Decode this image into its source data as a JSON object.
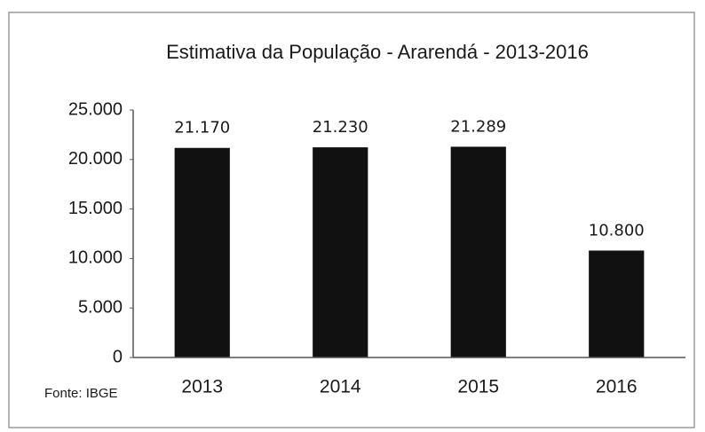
{
  "chart_data": {
    "type": "bar",
    "title": "Estimativa da População - Ararendá - 2013-2016",
    "categories": [
      "2013",
      "2014",
      "2015",
      "2016"
    ],
    "values": [
      21170,
      21230,
      21289,
      10800
    ],
    "value_labels": [
      "21.170",
      "21.230",
      "21.289",
      "10.800"
    ],
    "color": "#111111",
    "ylim": [
      0,
      25000
    ],
    "yticks": [
      0,
      {
        "value": 5000,
        "label": "5.000"
      },
      {
        "value": 10000,
        "label": "10.000"
      },
      {
        "value": 15000,
        "label": "15.000"
      },
      {
        "value": 20000,
        "label": "20.000"
      },
      {
        "value": 25000,
        "label": "25.000"
      }
    ],
    "grid": false,
    "annotations": [
      "Fonte: IBGE"
    ]
  }
}
